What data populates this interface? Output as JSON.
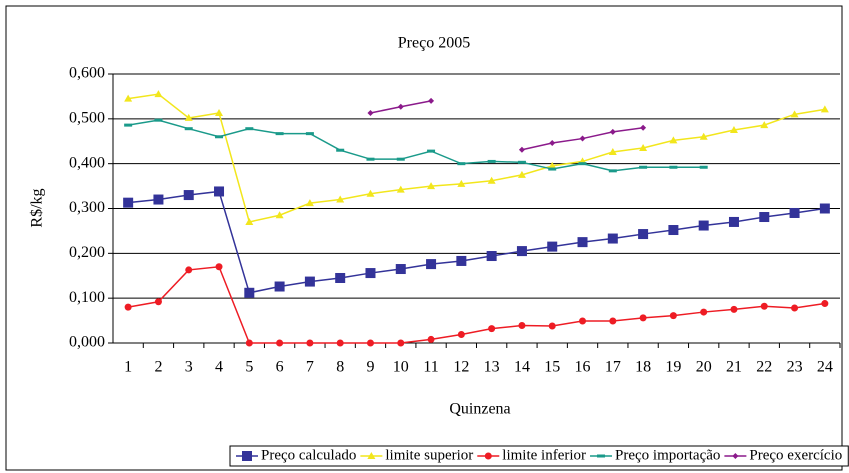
{
  "chart_data": {
    "type": "line",
    "title": "Preço 2005",
    "y_label": "R$/kg",
    "x_label": "Quinzena",
    "categories": [
      "1",
      "2",
      "3",
      "4",
      "5",
      "6",
      "7",
      "8",
      "9",
      "10",
      "11",
      "12",
      "13",
      "14",
      "15",
      "16",
      "17",
      "18",
      "19",
      "20",
      "21",
      "22",
      "23",
      "24"
    ],
    "ylim": [
      0,
      0.6
    ],
    "yticks": [
      {
        "value": 0,
        "label": "0,000"
      },
      {
        "value": 0.1,
        "label": "0,100"
      },
      {
        "value": 0.2,
        "label": "0,200"
      },
      {
        "value": 0.3,
        "label": "0,300"
      },
      {
        "value": 0.4,
        "label": "0,400"
      },
      {
        "value": 0.5,
        "label": "0,500"
      },
      {
        "value": 0.6,
        "label": "0,600"
      }
    ],
    "grid": true,
    "legend": "bottom",
    "series": [
      {
        "name": "Preço calculado",
        "color": "#333399",
        "marker": "square",
        "values": [
          0.313,
          0.32,
          0.33,
          0.338,
          0.112,
          0.126,
          0.137,
          0.145,
          0.156,
          0.165,
          0.176,
          0.183,
          0.194,
          0.205,
          0.215,
          0.225,
          0.233,
          0.243,
          0.252,
          0.262,
          0.27,
          0.281,
          0.29,
          0.3
        ]
      },
      {
        "name": "limite superior",
        "color": "#f2e61c",
        "marker": "triangle",
        "values": [
          0.545,
          0.555,
          0.502,
          0.513,
          0.27,
          0.285,
          0.312,
          0.32,
          0.333,
          0.342,
          0.35,
          0.355,
          0.362,
          0.375,
          0.395,
          0.405,
          0.426,
          0.435,
          0.452,
          0.46,
          0.475,
          0.486,
          0.51,
          0.521
        ]
      },
      {
        "name": "limite inferior",
        "color": "#ee1c24",
        "marker": "circle",
        "values": [
          0.08,
          0.092,
          0.163,
          0.17,
          0,
          0,
          0,
          0,
          0,
          0,
          0.008,
          0.019,
          0.032,
          0.039,
          0.038,
          0.049,
          0.049,
          0.056,
          0.061,
          0.069,
          0.075,
          0.082,
          0.078,
          0.088
        ]
      },
      {
        "name": "Preço importação",
        "color": "#1a9a8a",
        "marker": "dash",
        "values": [
          0.486,
          0.497,
          0.478,
          0.46,
          0.478,
          0.467,
          0.467,
          0.43,
          0.41,
          0.41,
          0.428,
          0.4,
          0.405,
          0.403,
          0.388,
          0.4,
          0.384,
          0.392,
          0.392,
          0.392,
          null,
          null,
          null,
          null
        ]
      },
      {
        "name": "Preço exercício",
        "color": "#8b1a8b",
        "marker": "diamond",
        "values": [
          null,
          null,
          null,
          null,
          null,
          null,
          null,
          null,
          0.513,
          0.527,
          0.54,
          null,
          null,
          0.431,
          0.446,
          0.456,
          0.471,
          0.48,
          null,
          null,
          null,
          null,
          null,
          null
        ]
      }
    ]
  }
}
